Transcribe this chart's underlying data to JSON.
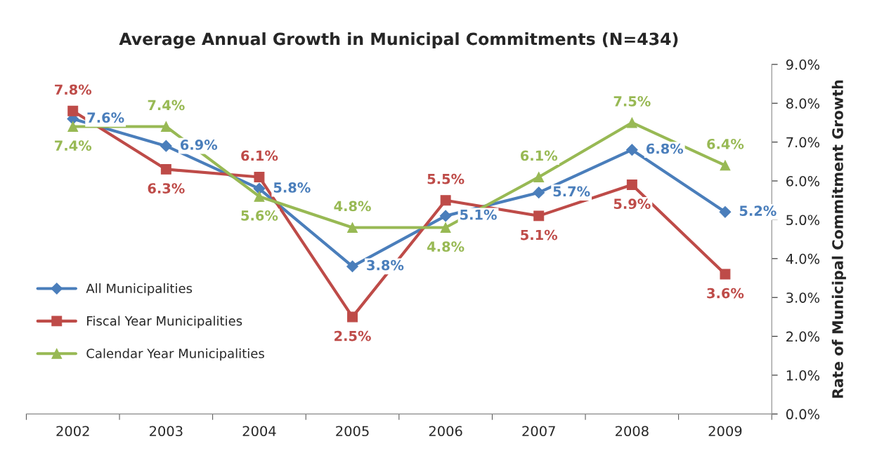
{
  "chart_data": {
    "type": "line",
    "title": "Average Annual Growth in Municipal Commitments (N=434)",
    "categories": [
      "2002",
      "2003",
      "2004",
      "2005",
      "2006",
      "2007",
      "2008",
      "2009"
    ],
    "y2label": "Rate of Municipal Commitment Growth",
    "ylim": [
      0,
      9
    ],
    "yticks": [
      {
        "value": 0,
        "label": "0.0%"
      },
      {
        "value": 1,
        "label": "1.0%"
      },
      {
        "value": 2,
        "label": "2.0%"
      },
      {
        "value": 3,
        "label": "3.0%"
      },
      {
        "value": 4,
        "label": "4.0%"
      },
      {
        "value": 5,
        "label": "5.0%"
      },
      {
        "value": 6,
        "label": "6.0%"
      },
      {
        "value": 7,
        "label": "7.0%"
      },
      {
        "value": 8,
        "label": "8.0%"
      },
      {
        "value": 9,
        "label": "9.0%"
      }
    ],
    "grid": false,
    "legend": "bottom left",
    "series": [
      {
        "name": "All Municipalities",
        "color": "#4a7ebb",
        "marker": "diamond",
        "values": [
          7.6,
          6.9,
          5.8,
          3.8,
          5.1,
          5.7,
          6.8,
          5.2
        ],
        "value_labels": [
          "7.6%",
          "6.9%",
          "5.8%",
          "3.8%",
          "5.1%",
          "5.7%",
          "6.8%",
          "5.2%"
        ]
      },
      {
        "name": "Fiscal Year Municipalities",
        "color": "#be4b48",
        "marker": "square",
        "values": [
          7.8,
          6.3,
          6.1,
          2.5,
          5.5,
          5.1,
          5.9,
          3.6
        ],
        "value_labels": [
          "7.8%",
          "6.3%",
          "6.1%",
          "2.5%",
          "5.5%",
          "5.1%",
          "5.9%",
          "3.6%"
        ]
      },
      {
        "name": "Calendar Year Municipalities",
        "color": "#98b954",
        "marker": "triangle",
        "values": [
          7.4,
          7.4,
          5.6,
          4.8,
          4.8,
          6.1,
          7.5,
          6.4
        ],
        "value_labels": [
          "7.4%",
          "7.4%",
          "5.6%",
          "4.8%",
          "4.8%",
          "6.1%",
          "7.5%",
          "6.4%"
        ]
      }
    ]
  }
}
